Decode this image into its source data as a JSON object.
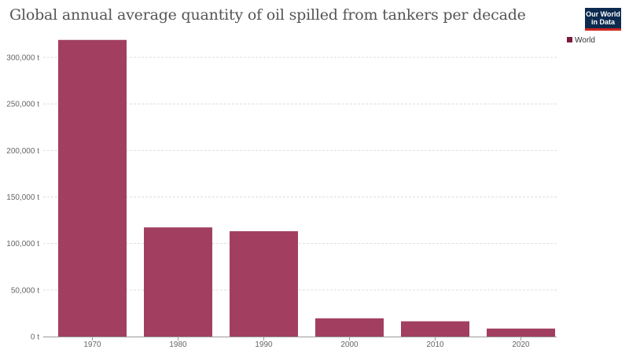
{
  "header": {
    "title": "Global annual average quantity of oil spilled from tankers per decade",
    "logo_line1": "Our World",
    "logo_line2": "in Data"
  },
  "colors": {
    "bar": "#a23f61",
    "legend_swatch": "#7a1a3e",
    "grid": "#dddddd",
    "axis": "#999999"
  },
  "chart_data": {
    "type": "bar",
    "title": "Global annual average quantity of oil spilled from tankers per decade",
    "categories": [
      "1970",
      "1980",
      "1990",
      "2000",
      "2010",
      "2020"
    ],
    "series": [
      {
        "name": "World",
        "values": [
          318800,
          117300,
          113200,
          19600,
          16400,
          8600
        ]
      }
    ],
    "y_ticks": [
      0,
      50000,
      100000,
      150000,
      200000,
      250000,
      300000
    ],
    "y_tick_labels": [
      "0 t",
      "50,000 t",
      "100,000 t",
      "150,000 t",
      "200,000 t",
      "250,000 t",
      "300,000 t"
    ],
    "ylim": [
      0,
      300000
    ],
    "xlabel": "",
    "ylabel": "",
    "grid": true,
    "legend_position": "top-right"
  }
}
